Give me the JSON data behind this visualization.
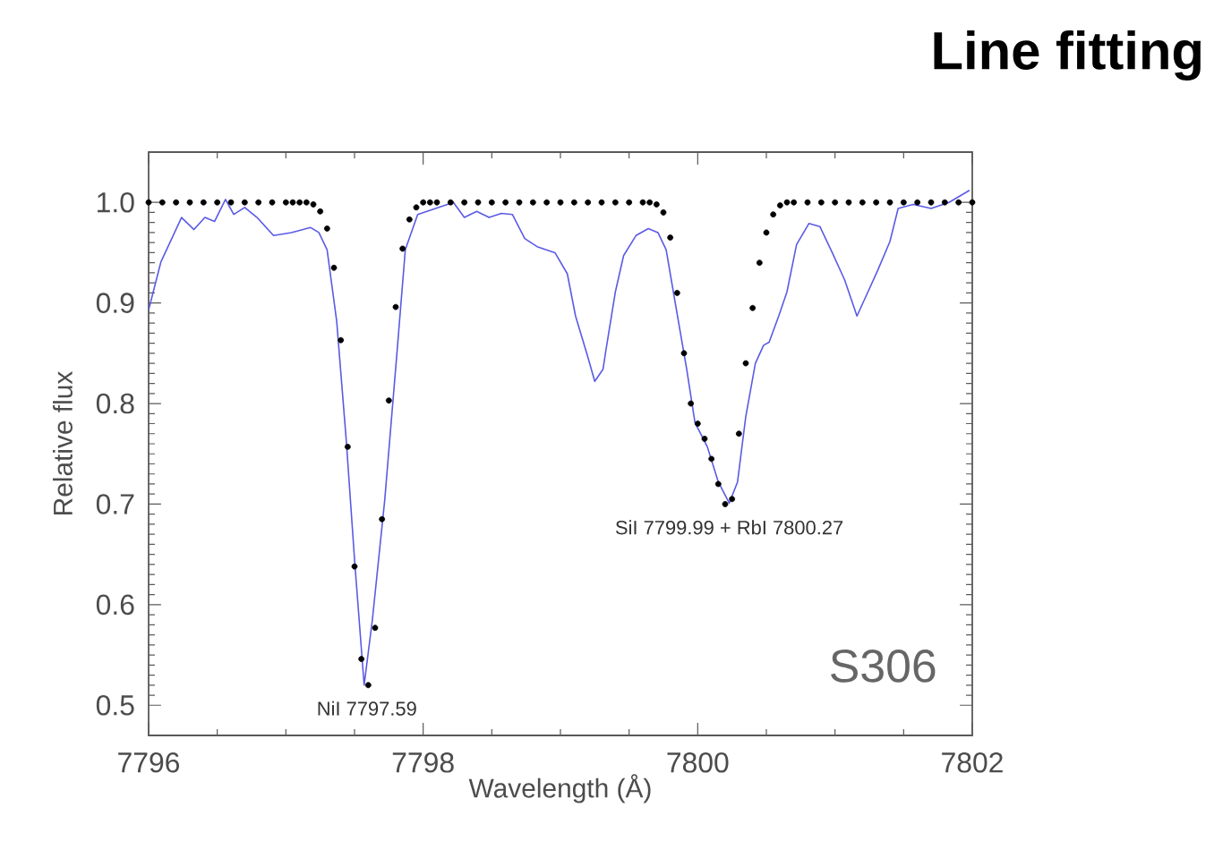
{
  "chart_data": {
    "type": "line",
    "title": "Line fitting",
    "xlabel": "Wavelength (Å)",
    "ylabel": "Relative flux",
    "xlim": [
      7796,
      7802
    ],
    "ylim": [
      0.47,
      1.05
    ],
    "xticks": [
      7796,
      7798,
      7800,
      7802
    ],
    "yticks": [
      0.5,
      0.6,
      0.7,
      0.8,
      0.9,
      {
        "value": 1.0,
        "label": "1.0"
      }
    ],
    "grid": false,
    "annotations": [
      {
        "text": "NiI 7797.59",
        "x": 7797.59,
        "y": 0.52
      },
      {
        "text": "SiI 7799.99 + RbI 7800.27",
        "x": 7800.23,
        "y": 0.7
      },
      "S306"
    ],
    "series": [
      {
        "type": "line",
        "color": "#5a5ae6",
        "marker": "none",
        "x": [
          7796.0,
          7796.09,
          7796.24,
          7796.33,
          7796.41,
          7796.48,
          7796.56,
          7796.62,
          7796.7,
          7796.79,
          7796.91,
          7797.04,
          7797.18,
          7797.24,
          7797.3,
          7797.37,
          7797.44,
          7797.5,
          7797.57,
          7797.63,
          7797.72,
          7797.81,
          7797.87,
          7797.96,
          7798.09,
          7798.22,
          7798.3,
          7798.39,
          7798.48,
          7798.57,
          7798.65,
          7798.74,
          7798.83,
          7798.96,
          7799.05,
          7799.11,
          7799.2,
          7799.25,
          7799.31,
          7799.33,
          7799.4,
          7799.46,
          7799.55,
          7799.64,
          7799.71,
          7799.77,
          7799.83,
          7799.92,
          7799.98,
          7800.07,
          7800.15,
          7800.23,
          7800.29,
          7800.35,
          7800.42,
          7800.48,
          7800.52,
          7800.59,
          7800.65,
          7800.72,
          7800.81,
          7800.89,
          7800.98,
          7801.07,
          7801.16,
          7801.22,
          7801.31,
          7801.4,
          7801.46,
          7801.57,
          7801.7,
          7801.83,
          7801.98
        ],
        "values": [
          0.893,
          0.941,
          0.985,
          0.973,
          0.985,
          0.981,
          1.003,
          0.988,
          0.995,
          0.985,
          0.967,
          0.97,
          0.975,
          0.97,
          0.953,
          0.882,
          0.763,
          0.645,
          0.52,
          0.585,
          0.704,
          0.852,
          0.953,
          0.988,
          0.994,
          1.0,
          0.985,
          0.991,
          0.985,
          0.989,
          0.988,
          0.964,
          0.956,
          0.95,
          0.929,
          0.887,
          0.846,
          0.822,
          0.834,
          0.852,
          0.911,
          0.947,
          0.967,
          0.974,
          0.97,
          0.953,
          0.905,
          0.834,
          0.781,
          0.757,
          0.722,
          0.701,
          0.722,
          0.787,
          0.84,
          0.858,
          0.861,
          0.887,
          0.911,
          0.958,
          0.979,
          0.976,
          0.95,
          0.923,
          0.887,
          0.905,
          0.932,
          0.961,
          0.994,
          0.998,
          0.994,
          1.0,
          1.012
        ]
      },
      {
        "type": "scatter",
        "color": "#000000",
        "marker": "circle",
        "x": [
          7796.0,
          7796.1,
          7796.2,
          7796.3,
          7796.4,
          7796.5,
          7796.6,
          7796.7,
          7796.8,
          7796.9,
          7797.0,
          7797.05,
          7797.1,
          7797.15,
          7797.2,
          7797.25,
          7797.3,
          7797.35,
          7797.4,
          7797.45,
          7797.5,
          7797.55,
          7797.6,
          7797.65,
          7797.7,
          7797.75,
          7797.8,
          7797.85,
          7797.9,
          7797.95,
          7798.0,
          7798.05,
          7798.1,
          7798.2,
          7798.3,
          7798.4,
          7798.5,
          7798.6,
          7798.7,
          7798.8,
          7798.9,
          7799.0,
          7799.1,
          7799.2,
          7799.3,
          7799.4,
          7799.5,
          7799.6,
          7799.65,
          7799.7,
          7799.75,
          7799.8,
          7799.85,
          7799.9,
          7799.95,
          7800.0,
          7800.05,
          7800.1,
          7800.15,
          7800.2,
          7800.25,
          7800.3,
          7800.35,
          7800.4,
          7800.45,
          7800.5,
          7800.55,
          7800.6,
          7800.65,
          7800.7,
          7800.8,
          7800.9,
          7801.0,
          7801.1,
          7801.2,
          7801.3,
          7801.4,
          7801.5,
          7801.6,
          7801.7,
          7801.8,
          7801.9,
          7802.0
        ],
        "values": [
          1.0,
          1.0,
          1.0,
          1.0,
          1.0,
          1.0,
          1.0,
          1.0,
          1.0,
          1.0,
          1.0,
          1.0,
          1.0,
          1.0,
          0.998,
          0.991,
          0.974,
          0.935,
          0.863,
          0.757,
          0.638,
          0.546,
          0.52,
          0.577,
          0.685,
          0.803,
          0.896,
          0.954,
          0.983,
          0.995,
          1.0,
          1.0,
          1.0,
          1.0,
          1.0,
          1.0,
          1.0,
          1.0,
          1.0,
          1.0,
          1.0,
          1.0,
          1.0,
          1.0,
          1.0,
          1.0,
          1.0,
          1.0,
          1.0,
          0.998,
          0.99,
          0.965,
          0.91,
          0.85,
          0.8,
          0.78,
          0.765,
          0.745,
          0.72,
          0.7,
          0.705,
          0.77,
          0.84,
          0.895,
          0.94,
          0.97,
          0.988,
          0.997,
          1.0,
          1.0,
          1.0,
          1.0,
          1.0,
          1.0,
          1.0,
          1.0,
          1.0,
          1.0,
          1.0,
          1.0,
          1.0,
          1.0,
          1.0
        ]
      }
    ]
  }
}
